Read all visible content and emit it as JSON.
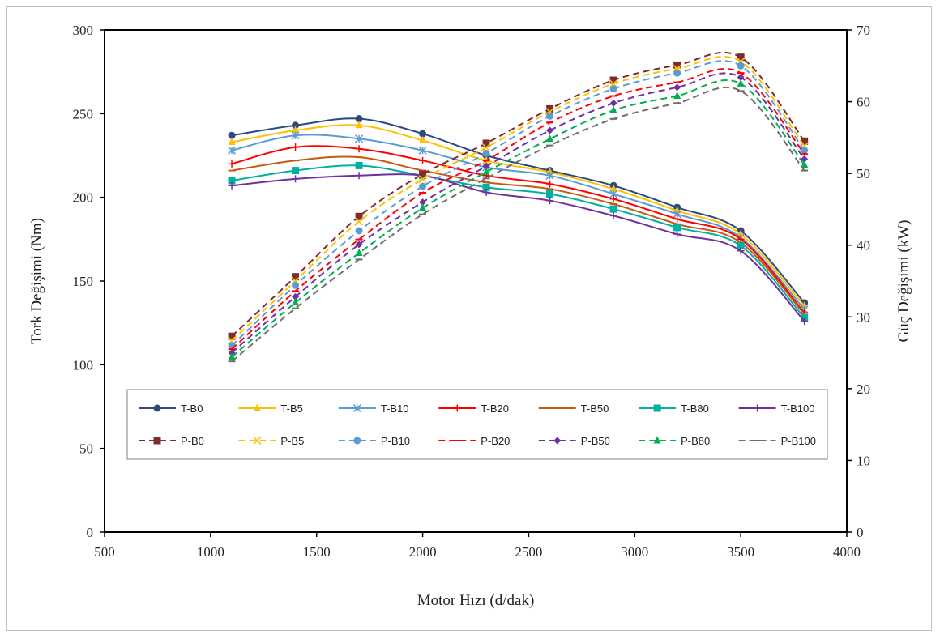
{
  "chart_data": {
    "type": "line",
    "xlabel": "Motor Hızı (d/dak)",
    "ylabel": "Tork Değişimi (Nm)",
    "y2label": "Güç Değişimi (kW)",
    "xlim": [
      500,
      4000
    ],
    "ylim": [
      0,
      300
    ],
    "y2lim": [
      0,
      70
    ],
    "xticks": [
      500,
      1000,
      1500,
      2000,
      2500,
      3000,
      3500,
      4000
    ],
    "yticks": [
      0,
      50,
      100,
      150,
      200,
      250,
      300
    ],
    "y2ticks": [
      0,
      10,
      20,
      30,
      40,
      50,
      60,
      70
    ],
    "grid": false,
    "legend_position": "center",
    "x": [
      1100,
      1400,
      1700,
      2000,
      2300,
      2600,
      2900,
      3200,
      3500,
      3800
    ],
    "series": [
      {
        "name": "T-B0",
        "axis": "left",
        "color": "#2e4a7d",
        "dash": "solid",
        "marker": "circle",
        "values": [
          237,
          243,
          247,
          238,
          225,
          216,
          207,
          194,
          180,
          137
        ]
      },
      {
        "name": "T-B5",
        "axis": "left",
        "color": "#ffc000",
        "dash": "solid",
        "marker": "triangle",
        "values": [
          233,
          240,
          243,
          234,
          222,
          215,
          205,
          192,
          178,
          135
        ]
      },
      {
        "name": "T-B10",
        "axis": "left",
        "color": "#5b9bd5",
        "dash": "solid",
        "marker": "star",
        "values": [
          228,
          237,
          235,
          228,
          218,
          213,
          202,
          190,
          176,
          133
        ]
      },
      {
        "name": "T-B20",
        "axis": "left",
        "color": "#ff0000",
        "dash": "solid",
        "marker": "plus",
        "values": [
          220,
          230,
          229,
          222,
          213,
          208,
          199,
          187,
          175,
          131
        ]
      },
      {
        "name": "T-B50",
        "axis": "left",
        "color": "#c55a11",
        "dash": "solid",
        "marker": "dash",
        "values": [
          216,
          222,
          224,
          216,
          209,
          205,
          196,
          184,
          173,
          130
        ]
      },
      {
        "name": "T-B80",
        "axis": "left",
        "color": "#00b0a0",
        "dash": "solid",
        "marker": "square",
        "values": [
          210,
          216,
          219,
          213,
          206,
          202,
          193,
          182,
          171,
          128
        ]
      },
      {
        "name": "T-B100",
        "axis": "left",
        "color": "#7030a0",
        "dash": "solid",
        "marker": "plus",
        "values": [
          207,
          211,
          213,
          213,
          203,
          198,
          189,
          178,
          168,
          126
        ]
      },
      {
        "name": "P-B0",
        "axis": "right",
        "color": "#7b2c2c",
        "dash": "dashed",
        "marker": "square",
        "values": [
          27.3,
          35.6,
          44.0,
          49.9,
          54.2,
          59.0,
          63.0,
          65.1,
          66.2,
          54.5
        ]
      },
      {
        "name": "P-B5",
        "axis": "right",
        "color": "#ffc000",
        "dash": "dashed",
        "marker": "x",
        "values": [
          26.7,
          35.0,
          43.3,
          49.2,
          53.6,
          58.6,
          62.5,
          64.6,
          65.6,
          53.8
        ]
      },
      {
        "name": "P-B10",
        "axis": "right",
        "color": "#5b9bd5",
        "dash": "dashed",
        "marker": "circle",
        "values": [
          26.0,
          34.4,
          42.0,
          48.2,
          52.8,
          58.0,
          61.8,
          64.0,
          65.0,
          53.2
        ]
      },
      {
        "name": "P-B20",
        "axis": "right",
        "color": "#ff0000",
        "dash": "dashed",
        "marker": "dash",
        "values": [
          25.5,
          33.6,
          40.8,
          47.3,
          51.8,
          57.1,
          60.8,
          62.7,
          64.0,
          52.7
        ]
      },
      {
        "name": "P-B50",
        "axis": "right",
        "color": "#7030a0",
        "dash": "dashed",
        "marker": "diamond",
        "values": [
          25.0,
          32.8,
          40.1,
          46.0,
          51.0,
          56.0,
          59.8,
          62.0,
          63.4,
          52.0
        ]
      },
      {
        "name": "P-B80",
        "axis": "right",
        "color": "#00b050",
        "dash": "dashed",
        "marker": "triangle",
        "values": [
          24.4,
          32.0,
          38.9,
          45.2,
          50.2,
          54.8,
          58.8,
          60.8,
          62.5,
          51.2
        ]
      },
      {
        "name": "P-B100",
        "axis": "right",
        "color": "#6e6e6e",
        "dash": "dashed",
        "marker": "dash",
        "values": [
          23.8,
          31.2,
          38.0,
          44.3,
          49.3,
          53.9,
          57.6,
          59.8,
          61.5,
          50.4
        ]
      }
    ]
  }
}
